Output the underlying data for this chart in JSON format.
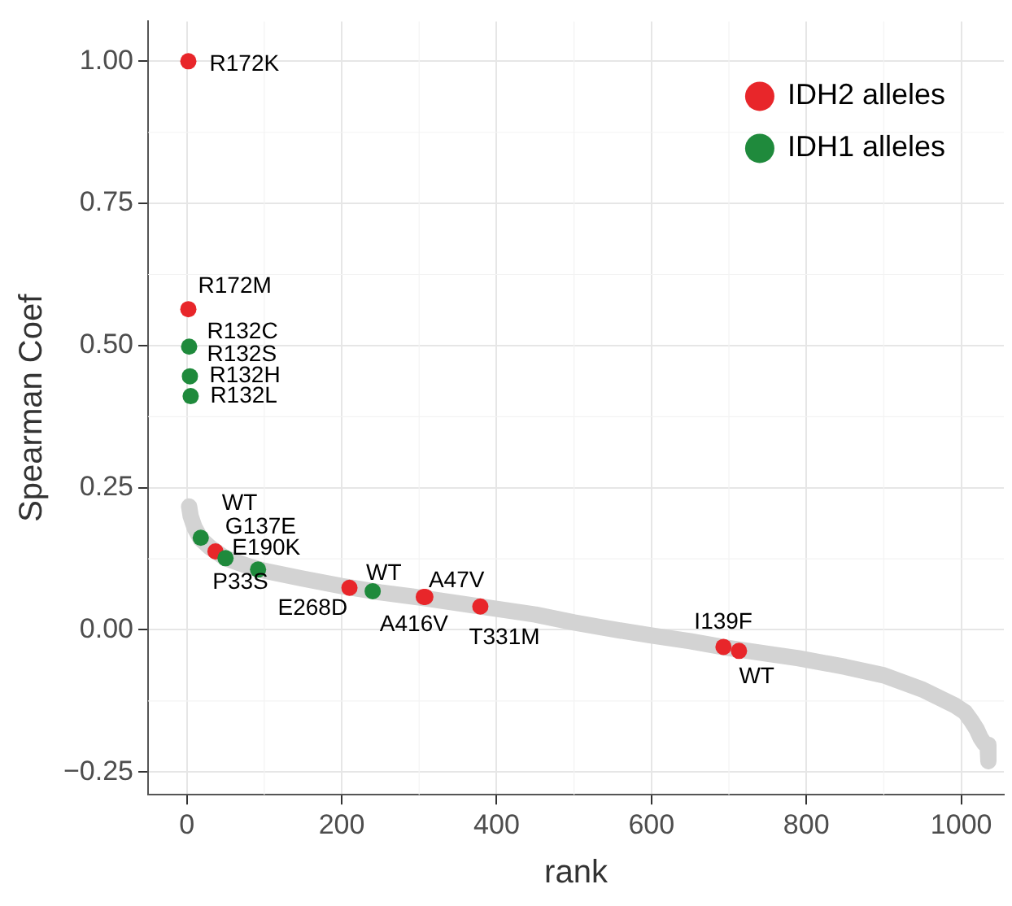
{
  "chart_data": {
    "type": "scatter",
    "xlabel": "rank",
    "ylabel": "Spearman Coef",
    "xlim": [
      -50,
      1055
    ],
    "ylim": [
      -0.29,
      1.07
    ],
    "xticks": [
      0,
      200,
      400,
      600,
      800,
      1000
    ],
    "yticks": [
      {
        "value": -0.25,
        "label": "−0.25"
      },
      {
        "value": 0,
        "label": "0.00"
      },
      {
        "value": 0.25,
        "label": "0.25"
      },
      {
        "value": 0.5,
        "label": "0.50"
      },
      {
        "value": 0.75,
        "label": "0.75"
      },
      {
        "value": 1,
        "label": "1.00"
      }
    ],
    "grid": true,
    "legend": "top right",
    "marker": "circle",
    "series": [
      {
        "type": "line",
        "marker": "none",
        "color": "#d3d3d3",
        "x": [
          3,
          5,
          10,
          18,
          30,
          50,
          75,
          100,
          150,
          200,
          250,
          300,
          350,
          400,
          450,
          500,
          554,
          600,
          650,
          700,
          750,
          790,
          850,
          900,
          950,
          992,
          1005,
          1013,
          1020,
          1025,
          1030,
          1034,
          1035
        ],
        "values": [
          0.217,
          0.2,
          0.18,
          0.16,
          0.145,
          0.126,
          0.114,
          0.104,
          0.09,
          0.077,
          0.066,
          0.057,
          0.047,
          0.037,
          0.027,
          0.013,
          0,
          -0.01,
          -0.02,
          -0.032,
          -0.042,
          -0.05,
          -0.065,
          -0.08,
          -0.105,
          -0.133,
          -0.145,
          -0.16,
          -0.175,
          -0.19,
          -0.2,
          -0.202,
          -0.231
        ]
      },
      {
        "name": "IDH2 alleles",
        "color": "#e8262a",
        "x": [
          2,
          2,
          37,
          210,
          306,
          308,
          379,
          693,
          713
        ],
        "values": [
          1.0,
          0.564,
          0.138,
          0.074,
          0.058,
          0.058,
          0.041,
          -0.03,
          -0.037
        ]
      },
      {
        "name": "IDH1 alleles",
        "color": "#1f8a3c",
        "x": [
          3,
          4,
          5,
          18,
          50,
          92,
          240
        ],
        "values": [
          0.498,
          0.446,
          0.411,
          0.162,
          0.126,
          0.106,
          0.068
        ]
      }
    ],
    "annotations": [
      {
        "text": "R172K",
        "x": 2,
        "y": 1.0
      },
      {
        "text": "R172M",
        "x": 2,
        "y": 0.564
      },
      {
        "text": "R132C",
        "x": 3,
        "y": 0.498
      },
      {
        "text": "R132S",
        "x": 3,
        "y": 0.498
      },
      {
        "text": "R132H",
        "x": 4,
        "y": 0.446
      },
      {
        "text": "R132L",
        "x": 5,
        "y": 0.411
      },
      {
        "text": "WT",
        "x": 18,
        "y": 0.162
      },
      {
        "text": "G137E",
        "x": 37,
        "y": 0.138
      },
      {
        "text": "E190K",
        "x": 50,
        "y": 0.126
      },
      {
        "text": "P33S",
        "x": 92,
        "y": 0.106
      },
      {
        "text": "E268D",
        "x": 210,
        "y": 0.074
      },
      {
        "text": "WT",
        "x": 240,
        "y": 0.068
      },
      {
        "text": "A47V",
        "x": 306,
        "y": 0.058
      },
      {
        "text": "A416V",
        "x": 308,
        "y": 0.058
      },
      {
        "text": "T331M",
        "x": 379,
        "y": 0.041
      },
      {
        "text": "I139F",
        "x": 693,
        "y": -0.03
      },
      {
        "text": "WT",
        "x": 713,
        "y": -0.037
      }
    ]
  }
}
